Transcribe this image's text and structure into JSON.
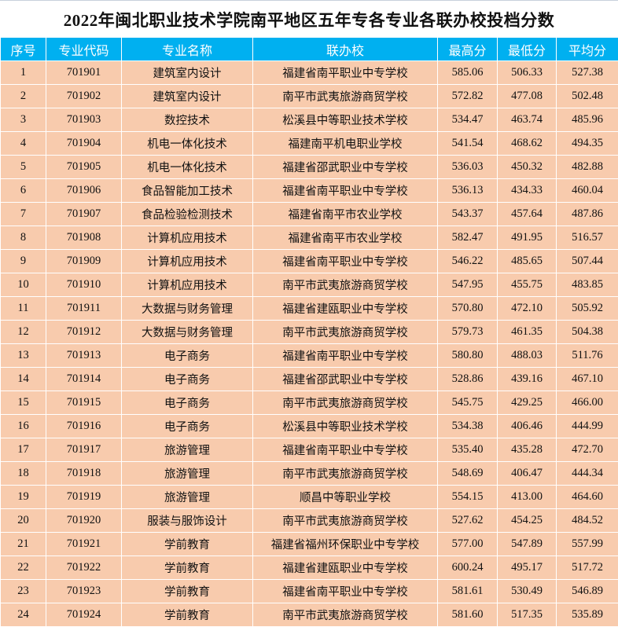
{
  "title": "2022年闽北职业技术学院南平地区五年专各专业各联办校投档分数",
  "colors": {
    "header_bg": "#00b0f0",
    "row_bg": "#f8cbad"
  },
  "columns": [
    "序号",
    "专业代码",
    "专业名称",
    "联办校",
    "最高分",
    "最低分",
    "平均分"
  ],
  "rows": [
    [
      "1",
      "701901",
      "建筑室内设计",
      "福建省南平职业中专学校",
      "585.06",
      "506.33",
      "527.38"
    ],
    [
      "2",
      "701902",
      "建筑室内设计",
      "南平市武夷旅游商贸学校",
      "572.82",
      "477.08",
      "502.48"
    ],
    [
      "3",
      "701903",
      "数控技术",
      "松溪县中等职业技术学校",
      "534.47",
      "463.74",
      "485.96"
    ],
    [
      "4",
      "701904",
      "机电一体化技术",
      "福建南平机电职业学校",
      "541.54",
      "468.62",
      "494.35"
    ],
    [
      "5",
      "701905",
      "机电一体化技术",
      "福建省邵武职业中专学校",
      "536.03",
      "450.32",
      "482.88"
    ],
    [
      "6",
      "701906",
      "食品智能加工技术",
      "福建省南平职业中专学校",
      "536.13",
      "434.33",
      "460.04"
    ],
    [
      "7",
      "701907",
      "食品检验检测技术",
      "福建省南平市农业学校",
      "543.37",
      "457.64",
      "487.86"
    ],
    [
      "8",
      "701908",
      "计算机应用技术",
      "福建省南平市农业学校",
      "582.47",
      "491.95",
      "516.57"
    ],
    [
      "9",
      "701909",
      "计算机应用技术",
      "福建省南平职业中专学校",
      "546.22",
      "485.65",
      "507.44"
    ],
    [
      "10",
      "701910",
      "计算机应用技术",
      "南平市武夷旅游商贸学校",
      "547.95",
      "455.75",
      "483.85"
    ],
    [
      "11",
      "701911",
      "大数据与财务管理",
      "福建省建瓯职业中专学校",
      "570.80",
      "472.10",
      "505.92"
    ],
    [
      "12",
      "701912",
      "大数据与财务管理",
      "南平市武夷旅游商贸学校",
      "579.73",
      "461.35",
      "504.38"
    ],
    [
      "13",
      "701913",
      "电子商务",
      "福建省南平职业中专学校",
      "580.80",
      "488.03",
      "511.76"
    ],
    [
      "14",
      "701914",
      "电子商务",
      "福建省邵武职业中专学校",
      "528.86",
      "439.16",
      "467.10"
    ],
    [
      "15",
      "701915",
      "电子商务",
      "南平市武夷旅游商贸学校",
      "545.75",
      "429.25",
      "466.00"
    ],
    [
      "16",
      "701916",
      "电子商务",
      "松溪县中等职业技术学校",
      "534.38",
      "406.46",
      "444.99"
    ],
    [
      "17",
      "701917",
      "旅游管理",
      "福建省南平职业中专学校",
      "535.40",
      "435.28",
      "472.70"
    ],
    [
      "18",
      "701918",
      "旅游管理",
      "南平市武夷旅游商贸学校",
      "548.69",
      "406.47",
      "444.34"
    ],
    [
      "19",
      "701919",
      "旅游管理",
      "顺昌中等职业学校",
      "554.15",
      "413.00",
      "464.60"
    ],
    [
      "20",
      "701920",
      "服装与服饰设计",
      "南平市武夷旅游商贸学校",
      "527.62",
      "454.25",
      "484.52"
    ],
    [
      "21",
      "701921",
      "学前教育",
      "福建省福州环保职业中专学校",
      "577.00",
      "547.89",
      "557.99"
    ],
    [
      "22",
      "701922",
      "学前教育",
      "福建省建瓯职业中专学校",
      "600.24",
      "495.17",
      "517.72"
    ],
    [
      "23",
      "701923",
      "学前教育",
      "福建省南平职业中专学校",
      "581.61",
      "530.49",
      "546.89"
    ],
    [
      "24",
      "701924",
      "学前教育",
      "南平市武夷旅游商贸学校",
      "581.60",
      "517.35",
      "535.89"
    ]
  ]
}
